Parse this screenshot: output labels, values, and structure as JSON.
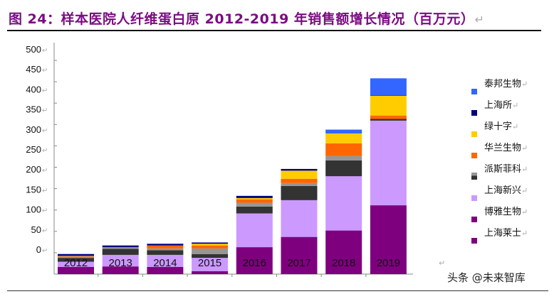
{
  "title": "图 24：样本医院人纤维蛋白原 2012-2019 年销售额增长情况（百万元）",
  "watermark": "头条 @未来智库",
  "chart_data": {
    "type": "bar",
    "stacked": true,
    "title": "图 24：样本医院人纤维蛋白原 2012-2019 年销售额增长情况（百万元）",
    "xlabel": "",
    "ylabel": "",
    "ylim": [
      0,
      500
    ],
    "yticks": [
      "500",
      "450",
      "400",
      "350",
      "300",
      "250",
      "200",
      "150",
      "100",
      "50",
      "0"
    ],
    "categories": [
      "2012",
      "2013",
      "2014",
      "2015",
      "2016",
      "2017",
      "2018",
      "2019"
    ],
    "grid": false,
    "legend_position": "right",
    "series": [
      {
        "name": "上海莱士",
        "color": "#7F007F",
        "values": [
          17,
          18,
          17,
          7,
          63,
          87,
          102,
          161
        ]
      },
      {
        "name": "博雅生物",
        "color": "#CC99FF",
        "values": [
          12,
          27,
          28,
          31,
          79,
          86,
          127,
          198
        ]
      },
      {
        "name": "上海新兴",
        "color": "#333333",
        "values": [
          9,
          14,
          11,
          9,
          16,
          33,
          37,
          4
        ]
      },
      {
        "name": "",
        "color": "#969696",
        "values": [
          3,
          4,
          4,
          13,
          9,
          7,
          10,
          0
        ]
      },
      {
        "name": "派斯菲科",
        "color": "#FF6600",
        "values": [
          2,
          0,
          7,
          7,
          8,
          10,
          30,
          8
        ]
      },
      {
        "name": "华兰生物",
        "color": "#FFCC00",
        "values": [
          0,
          0,
          0,
          4,
          3,
          19,
          23,
          46
        ]
      },
      {
        "name": "绿十字",
        "color": "#000080",
        "values": [
          4,
          4,
          4,
          3,
          5,
          4,
          0,
          1
        ]
      },
      {
        "name": "上海所",
        "color": "#3366FF",
        "values": [
          0,
          0,
          0,
          0,
          0,
          0,
          9,
          40
        ]
      },
      {
        "name": "泰邦生物",
        "color": "",
        "values": [
          0,
          0,
          0,
          0,
          0,
          0,
          0,
          0
        ]
      }
    ]
  },
  "legend": [
    {
      "label": "泰邦生物",
      "color": ""
    },
    {
      "label": "上海所",
      "color": "#3366FF"
    },
    {
      "label": "绿十字",
      "color": "#000080"
    },
    {
      "label": "华兰生物",
      "color": "#FFCC00"
    },
    {
      "label": "派斯菲科",
      "color": "#FF6600"
    },
    {
      "label": "上海新兴",
      "color": "#333333",
      "color2": "#969696"
    },
    {
      "label": "博雅生物",
      "color": "#CC99FF"
    },
    {
      "label": "上海莱士",
      "color": "#7F007F"
    }
  ]
}
